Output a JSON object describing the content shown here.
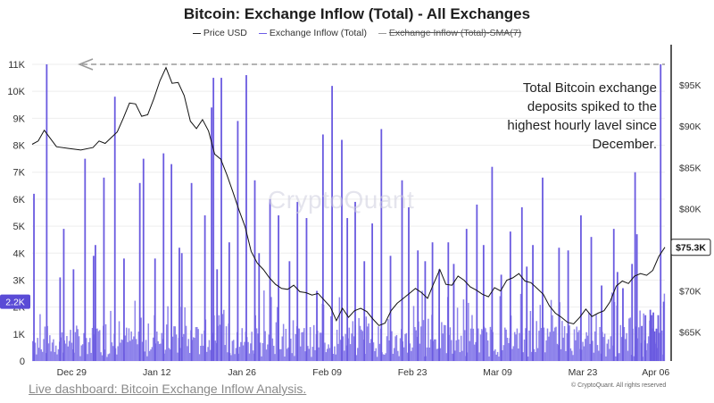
{
  "chart_data": {
    "type": "bar",
    "title": "Bitcoin: Exchange Inflow (Total) - All Exchanges",
    "legend": [
      "Price USD",
      "Exchange Inflow (Total)",
      "Exchange Inflow (Total)-SMA(7)"
    ],
    "x_ticks": [
      "Dec 29",
      "Jan 12",
      "Jan 26",
      "Feb 09",
      "Feb 23",
      "Mar 09",
      "Mar 23",
      "Apr 06"
    ],
    "y_left_ticks": [
      "0",
      "1K",
      "2K",
      "3K",
      "4K",
      "5K",
      "6K",
      "7K",
      "8K",
      "9K",
      "10K",
      "11K"
    ],
    "y_left_range": [
      0,
      11000
    ],
    "y_right_ticks": [
      "$65K",
      "$70K",
      "$75K",
      "$80K",
      "$85K",
      "$90K",
      "$95K"
    ],
    "y_right_range": [
      61500,
      97500
    ],
    "current_inflow_label": "2.2K",
    "current_price_label": "$75.3K",
    "annotation": "Total Bitcoin exchange deposits spiked to the highest hourly lavel since December.",
    "watermark": "CryptoQuant",
    "inflow_spikes": {
      "x": [
        0.3,
        2.4,
        4.6,
        5.2,
        6.8,
        8.7,
        10.1,
        10.4,
        11.8,
        13.6,
        15.1,
        17.7,
        18.3,
        20.2,
        21.6,
        22.9,
        24.2,
        24.6,
        26.2,
        28.4,
        29.5,
        29.8,
        30.4,
        31.1,
        32.4,
        33.8,
        35.2,
        36.6,
        37.3,
        39.1,
        40.5,
        42.3,
        43.6,
        45.1,
        46.8,
        47.8,
        49.3,
        50.9,
        51.8,
        53.1,
        54.6,
        55.9,
        57.4,
        58.9,
        60.8,
        61.9,
        63.4,
        64.6,
        65.8,
        66.9,
        68.4,
        69.3,
        71.4,
        73.1,
        74.2,
        75.6,
        77.1,
        78.6,
        80.5,
        81.3,
        82.3,
        83.9,
        86.6,
        88.1,
        90.2,
        91.9,
        93.6,
        95.6,
        96.2,
        97.1,
        98.6,
        99.1,
        99.4,
        100.2,
        100.8,
        101.6,
        101.8,
        102.1,
        102.3,
        102.6,
        102.9,
        103.3,
        103.8
      ],
      "values": [
        6200,
        11000,
        3100,
        4900,
        3400,
        7500,
        3900,
        4300,
        6800,
        9800,
        3800,
        6600,
        7500,
        3800,
        7700,
        7300,
        4200,
        4000,
        6600,
        5400,
        9400,
        10500,
        3400,
        10500,
        4400,
        8900,
        10600,
        6700,
        4000,
        6000,
        5400,
        3700,
        5900,
        5300,
        2600,
        8400,
        10200,
        8200,
        5300,
        5900,
        3700,
        5100,
        8600,
        3900,
        6700,
        5700,
        4100,
        3700,
        4400,
        3400,
        4400,
        3600,
        4900,
        5800,
        4300,
        7200,
        3200,
        4800,
        5700,
        3500,
        4300,
        6800,
        4200,
        4100,
        5400,
        4600,
        2800,
        4900,
        3300,
        2700,
        3600,
        7000,
        4700,
        1300,
        1700,
        1900,
        1700,
        1800,
        1100,
        1200,
        1700,
        11000,
        2200
      ]
    },
    "price_points": {
      "x": [
        0,
        1,
        2,
        4,
        6,
        8,
        10,
        11,
        12,
        14,
        15,
        16,
        17,
        18,
        19,
        20,
        21,
        22,
        23,
        24,
        25,
        26,
        27,
        28,
        29,
        30,
        31,
        32,
        33,
        34,
        35,
        36,
        37,
        38,
        39,
        40,
        41,
        42,
        43,
        44,
        45,
        46,
        47,
        48,
        49,
        50,
        51,
        52,
        53,
        54,
        55,
        56,
        57,
        58,
        59,
        60,
        61,
        62,
        63,
        64,
        65,
        66,
        67,
        68,
        69,
        70,
        71,
        72,
        73,
        74,
        75,
        76,
        77,
        78,
        79,
        80,
        81,
        82,
        83,
        84,
        85,
        86,
        87,
        88,
        89,
        90,
        91,
        92,
        93,
        94,
        95,
        96,
        97,
        98,
        99,
        100,
        101,
        102,
        103,
        104
      ],
      "values": [
        87800,
        88200,
        89500,
        87500,
        87300,
        87100,
        87400,
        88200,
        87900,
        89300,
        91000,
        92800,
        92700,
        91200,
        91400,
        93300,
        95500,
        97100,
        95200,
        95300,
        93700,
        90600,
        89700,
        90800,
        89400,
        86600,
        86000,
        84100,
        82000,
        79800,
        77800,
        74800,
        73400,
        72600,
        71600,
        70800,
        70300,
        70200,
        70700,
        69900,
        69800,
        69500,
        69700,
        68900,
        68100,
        66400,
        67900,
        66800,
        67600,
        67900,
        67500,
        66600,
        65800,
        66100,
        67600,
        68500,
        69100,
        69700,
        70300,
        69800,
        69100,
        70900,
        72600,
        70800,
        70700,
        71800,
        71300,
        70500,
        70100,
        69600,
        69300,
        70400,
        70000,
        71300,
        71600,
        72100,
        71200,
        71000,
        70300,
        69600,
        68200,
        67300,
        66800,
        66200,
        66000,
        66800,
        67800,
        66900,
        67300,
        67600,
        68700,
        70600,
        71200,
        70900,
        71800,
        72100,
        71900,
        72500,
        74200,
        75300
      ]
    },
    "grid": true,
    "legend_position": "top"
  }
}
